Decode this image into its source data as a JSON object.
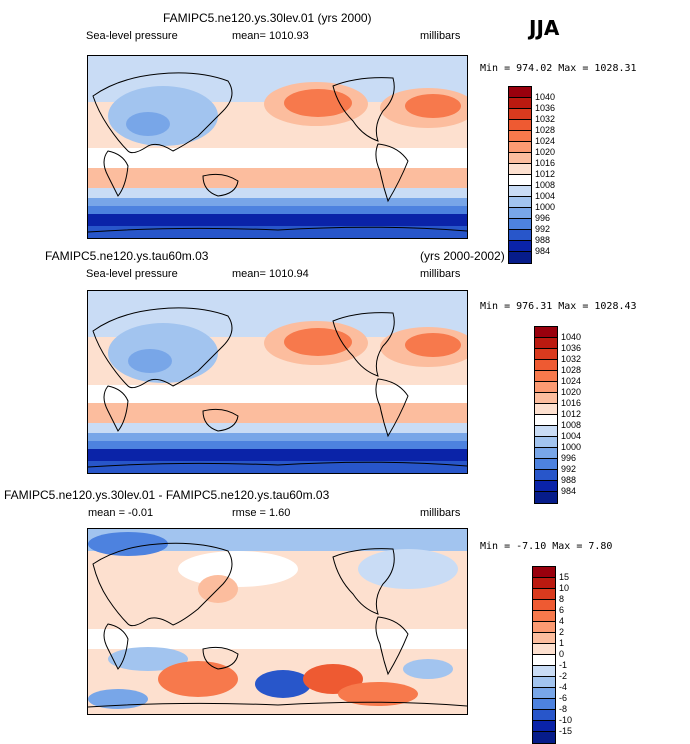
{
  "season": "JJA",
  "panels": [
    {
      "title": "FAMIPC5.ne120.ys.30lev.01 (yrs 2000)",
      "left_label": "Sea-level pressure",
      "mid_label": "mean= 1010.93",
      "units": "millibars",
      "minmax": "Min = 974.02 Max = 1028.31",
      "kind": "slp"
    },
    {
      "title": "FAMIPC5.ne120.ys.tau60m.03",
      "title_right": "(yrs 2000-2002)",
      "left_label": "Sea-level pressure",
      "mid_label": "mean= 1010.94",
      "units": "millibars",
      "minmax": "Min = 976.31 Max = 1028.43",
      "kind": "slp"
    },
    {
      "title": "FAMIPC5.ne120.ys.30lev.01 - FAMIPC5.ne120.ys.tau60m.03",
      "left_label": "mean =   -0.01",
      "mid_label": "rmse =   1.60",
      "units": "millibars",
      "minmax": "Min =  -7.10 Max =   7.80",
      "kind": "diff"
    }
  ],
  "colorbars": {
    "slp": {
      "labels": [
        "1040",
        "1036",
        "1032",
        "1028",
        "1024",
        "1020",
        "1016",
        "1012",
        "1008",
        "1004",
        "1000",
        "996",
        "992",
        "988",
        "984"
      ],
      "colors": [
        "#99000d",
        "#bb1a10",
        "#d93a1e",
        "#ee5a32",
        "#f7794c",
        "#fb9a72",
        "#fcbd9e",
        "#fde0cf",
        "#ffffff",
        "#c9dcf5",
        "#a2c4ef",
        "#78a6e8",
        "#4d82df",
        "#2856ca",
        "#0a23a8",
        "#061c8a"
      ]
    },
    "diff": {
      "labels": [
        "15",
        "10",
        "8",
        "6",
        "4",
        "2",
        "1",
        "0",
        "-1",
        "-2",
        "-4",
        "-6",
        "-8",
        "-10",
        "-15"
      ],
      "colors": [
        "#99000d",
        "#bb1a10",
        "#d93a1e",
        "#ee5a32",
        "#f7794c",
        "#fb9a72",
        "#fcbd9e",
        "#fde0cf",
        "#ffffff",
        "#c9dcf5",
        "#a2c4ef",
        "#78a6e8",
        "#4d82df",
        "#2856ca",
        "#0a23a8",
        "#061c8a"
      ]
    }
  }
}
